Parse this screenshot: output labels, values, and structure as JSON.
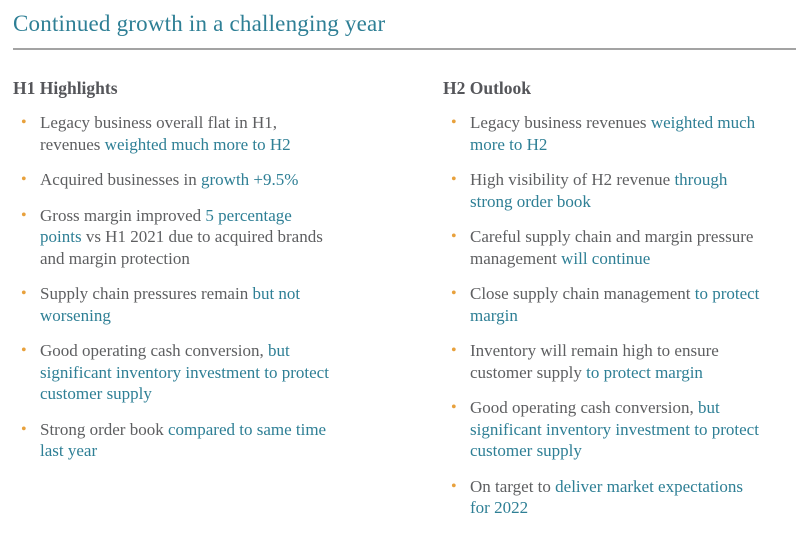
{
  "slide": {
    "title": "Continued growth in a challenging year"
  },
  "colors": {
    "accent_teal": "#2e7f95",
    "body_gray": "#5e5f61",
    "heading_gray": "#55565a",
    "bullet_orange": "#e8a13c",
    "divider_gray": "#a3a3a3",
    "background": "#ffffff"
  },
  "bullet": {
    "glyph": "•"
  },
  "columns": [
    {
      "heading": "H1 Highlights",
      "bullets": [
        {
          "segments": [
            {
              "text": "Legacy business overall flat in H1, revenues ",
              "highlight": false
            },
            {
              "text": "weighted much more to H2",
              "highlight": true
            }
          ]
        },
        {
          "segments": [
            {
              "text": "Acquired businesses in ",
              "highlight": false
            },
            {
              "text": "growth +9.5%",
              "highlight": true
            }
          ]
        },
        {
          "segments": [
            {
              "text": "Gross margin improved ",
              "highlight": false
            },
            {
              "text": "5 percentage points",
              "highlight": true
            },
            {
              "text": " vs H1 2021 due to acquired brands and margin protection",
              "highlight": false
            }
          ]
        },
        {
          "segments": [
            {
              "text": "Supply chain pressures remain ",
              "highlight": false
            },
            {
              "text": "but not worsening",
              "highlight": true
            }
          ]
        },
        {
          "segments": [
            {
              "text": "Good operating cash conversion, ",
              "highlight": false
            },
            {
              "text": "but significant inventory investment to protect customer supply",
              "highlight": true
            }
          ]
        },
        {
          "segments": [
            {
              "text": "Strong order book ",
              "highlight": false
            },
            {
              "text": "compared to same time last year",
              "highlight": true
            }
          ]
        }
      ]
    },
    {
      "heading": "H2 Outlook",
      "bullets": [
        {
          "segments": [
            {
              "text": "Legacy business revenues ",
              "highlight": false
            },
            {
              "text": "weighted much more to H2",
              "highlight": true
            }
          ]
        },
        {
          "segments": [
            {
              "text": "High visibility of H2 revenue ",
              "highlight": false
            },
            {
              "text": "through strong order book",
              "highlight": true
            }
          ]
        },
        {
          "segments": [
            {
              "text": "Careful supply chain and margin pressure management ",
              "highlight": false
            },
            {
              "text": "will continue",
              "highlight": true
            }
          ]
        },
        {
          "segments": [
            {
              "text": "Close supply chain management ",
              "highlight": false
            },
            {
              "text": "to protect margin",
              "highlight": true
            }
          ]
        },
        {
          "segments": [
            {
              "text": "Inventory will remain high to ensure customer supply ",
              "highlight": false
            },
            {
              "text": "to protect margin",
              "highlight": true
            }
          ]
        },
        {
          "segments": [
            {
              "text": "Good operating cash conversion, ",
              "highlight": false
            },
            {
              "text": "but significant inventory investment to protect customer supply",
              "highlight": true
            }
          ]
        },
        {
          "segments": [
            {
              "text": "On target to ",
              "highlight": false
            },
            {
              "text": "deliver market expectations for 2022",
              "highlight": true
            }
          ]
        }
      ]
    }
  ]
}
